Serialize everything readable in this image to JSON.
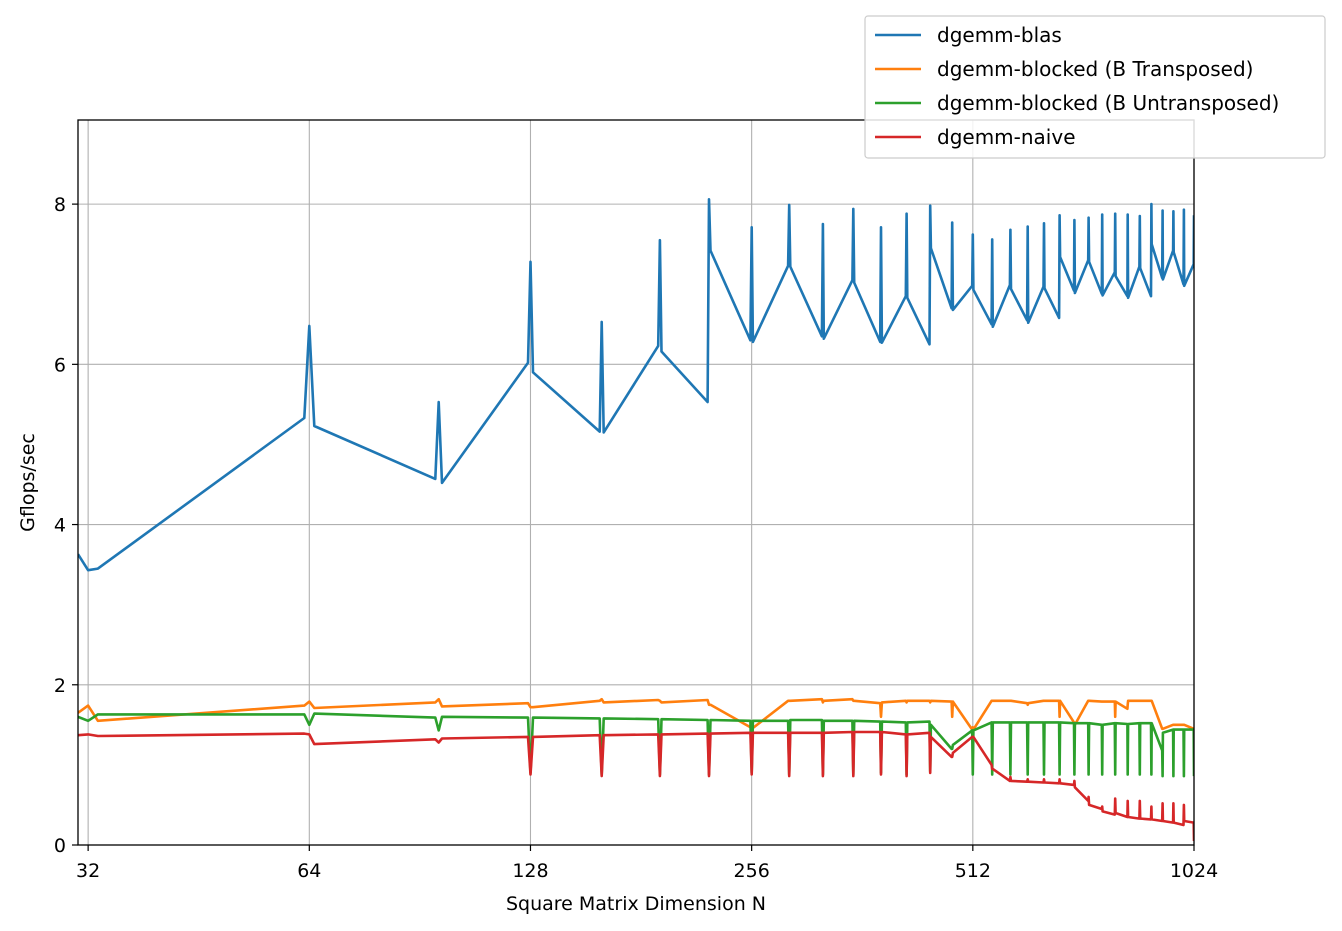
{
  "chart_data": {
    "type": "line",
    "title": "",
    "xlabel": "Square Matrix Dimension N",
    "ylabel": "Gflops/sec",
    "x_scale": "log2",
    "xlim": [
      31,
      1024
    ],
    "ylim": [
      0,
      9.05
    ],
    "xticks": [
      32,
      64,
      128,
      256,
      512,
      1024
    ],
    "yticks": [
      0,
      2,
      4,
      6,
      8
    ],
    "grid": true,
    "legend": "top-right",
    "series": [
      {
        "name": "dgemm-blas",
        "color": "#1f77b4",
        "x": [
          31,
          32,
          33,
          63,
          64,
          65,
          95,
          96,
          97,
          127,
          128,
          129,
          159,
          160,
          161,
          191,
          192,
          193,
          223,
          224,
          225,
          255,
          256,
          257,
          287,
          288,
          289,
          319,
          320,
          321,
          351,
          352,
          353,
          383,
          384,
          385,
          415,
          416,
          417,
          447,
          448,
          449,
          479,
          480,
          481,
          511,
          512,
          513,
          543,
          544,
          545,
          575,
          576,
          577,
          607,
          608,
          609,
          639,
          640,
          641,
          671,
          672,
          673,
          703,
          704,
          705,
          735,
          736,
          737,
          767,
          768,
          769,
          799,
          800,
          801,
          831,
          832,
          833,
          863,
          864,
          865,
          895,
          896,
          897,
          927,
          928,
          929,
          959,
          960,
          961,
          991,
          992,
          993,
          1023,
          1024
        ],
        "y": [
          3.63,
          3.43,
          3.45,
          5.33,
          6.48,
          5.23,
          4.57,
          5.53,
          4.52,
          6.02,
          7.28,
          5.9,
          5.16,
          6.53,
          5.15,
          6.23,
          7.55,
          6.16,
          5.53,
          8.06,
          7.42,
          6.3,
          7.71,
          6.28,
          7.23,
          7.99,
          7.22,
          6.35,
          7.75,
          6.32,
          7.05,
          7.94,
          7.02,
          6.28,
          7.71,
          6.27,
          6.85,
          7.88,
          6.83,
          6.25,
          7.98,
          7.45,
          6.7,
          7.77,
          6.68,
          6.98,
          7.62,
          6.93,
          6.5,
          7.56,
          6.47,
          6.99,
          7.68,
          6.94,
          6.55,
          7.72,
          6.52,
          6.97,
          7.76,
          6.95,
          6.58,
          7.86,
          7.34,
          6.92,
          7.8,
          6.89,
          7.3,
          7.83,
          7.28,
          6.88,
          7.87,
          6.86,
          7.15,
          7.88,
          7.1,
          6.85,
          7.87,
          6.83,
          7.22,
          7.85,
          7.2,
          6.85,
          8.0,
          7.5,
          7.08,
          7.92,
          7.06,
          7.42,
          7.91,
          7.4,
          7.0,
          7.93,
          6.98,
          7.25,
          7.86
        ]
      },
      {
        "name": "dgemm-blocked (B Transposed)",
        "color": "#ff7f0e",
        "x": [
          31,
          32,
          33,
          63,
          64,
          65,
          95,
          96,
          97,
          127,
          128,
          129,
          159,
          160,
          161,
          191,
          192,
          193,
          223,
          224,
          225,
          255,
          256,
          257,
          287,
          288,
          289,
          319,
          320,
          321,
          351,
          352,
          353,
          383,
          384,
          385,
          415,
          416,
          417,
          447,
          448,
          449,
          479,
          480,
          481,
          511,
          512,
          513,
          543,
          544,
          545,
          575,
          576,
          577,
          607,
          608,
          609,
          639,
          640,
          641,
          671,
          672,
          673,
          703,
          704,
          705,
          735,
          736,
          737,
          767,
          768,
          769,
          799,
          800,
          801,
          831,
          832,
          833,
          863,
          864,
          865,
          895,
          896,
          897,
          927,
          928,
          929,
          959,
          960,
          961,
          991,
          992,
          993,
          1023,
          1024
        ],
        "y": [
          1.65,
          1.74,
          1.55,
          1.74,
          1.79,
          1.71,
          1.78,
          1.82,
          1.73,
          1.77,
          1.72,
          1.72,
          1.8,
          1.82,
          1.78,
          1.81,
          1.8,
          1.78,
          1.81,
          1.75,
          1.75,
          1.47,
          1.48,
          1.46,
          1.8,
          1.8,
          1.8,
          1.82,
          1.78,
          1.8,
          1.82,
          1.8,
          1.8,
          1.77,
          1.6,
          1.78,
          1.8,
          1.78,
          1.8,
          1.8,
          1.78,
          1.8,
          1.79,
          1.6,
          1.79,
          1.44,
          1.47,
          1.44,
          1.8,
          1.8,
          1.8,
          1.8,
          1.8,
          1.8,
          1.77,
          1.75,
          1.77,
          1.8,
          1.8,
          1.8,
          1.8,
          1.6,
          1.8,
          1.53,
          1.5,
          1.5,
          1.8,
          1.8,
          1.8,
          1.79,
          1.79,
          1.79,
          1.79,
          1.6,
          1.79,
          1.7,
          1.75,
          1.8,
          1.8,
          1.8,
          1.8,
          1.8,
          1.8,
          1.8,
          1.45,
          1.45,
          1.45,
          1.5,
          1.5,
          1.5,
          1.5,
          1.5,
          1.5,
          1.45,
          1.45
        ]
      },
      {
        "name": "dgemm-blocked (B Untransposed)",
        "color": "#2ca02c",
        "x": [
          31,
          32,
          33,
          63,
          64,
          65,
          95,
          96,
          97,
          127,
          128,
          129,
          159,
          160,
          161,
          191,
          192,
          193,
          223,
          224,
          225,
          255,
          256,
          257,
          287,
          288,
          289,
          319,
          320,
          321,
          351,
          352,
          353,
          383,
          384,
          385,
          415,
          416,
          417,
          447,
          448,
          449,
          479,
          480,
          481,
          511,
          512,
          513,
          543,
          544,
          545,
          575,
          576,
          577,
          607,
          608,
          609,
          639,
          640,
          641,
          671,
          672,
          673,
          703,
          704,
          705,
          735,
          736,
          737,
          767,
          768,
          769,
          799,
          800,
          801,
          831,
          832,
          833,
          863,
          864,
          865,
          895,
          896,
          897,
          927,
          928,
          929,
          959,
          960,
          961,
          991,
          992,
          993,
          1023,
          1024
        ],
        "y": [
          1.6,
          1.55,
          1.63,
          1.63,
          1.5,
          1.64,
          1.59,
          1.43,
          1.6,
          1.59,
          0.9,
          1.59,
          1.58,
          0.88,
          1.58,
          1.57,
          0.88,
          1.57,
          1.56,
          0.88,
          1.56,
          1.55,
          0.9,
          1.55,
          1.55,
          0.88,
          1.56,
          1.56,
          0.88,
          1.55,
          1.55,
          0.88,
          1.55,
          1.54,
          0.9,
          1.54,
          1.53,
          0.88,
          1.53,
          1.54,
          0.92,
          1.5,
          1.2,
          1.2,
          1.25,
          1.43,
          0.88,
          1.43,
          1.53,
          0.88,
          1.53,
          1.53,
          0.88,
          1.53,
          1.53,
          0.88,
          1.53,
          1.53,
          0.88,
          1.53,
          1.53,
          0.88,
          1.53,
          1.52,
          0.88,
          1.52,
          1.52,
          0.88,
          1.52,
          1.5,
          0.88,
          1.5,
          1.52,
          0.88,
          1.52,
          1.51,
          0.88,
          1.51,
          1.52,
          0.88,
          1.52,
          1.52,
          0.88,
          1.52,
          1.18,
          0.86,
          1.4,
          1.44,
          0.86,
          1.44,
          1.44,
          0.86,
          1.44,
          1.44,
          0.86
        ]
      },
      {
        "name": "dgemm-naive",
        "color": "#d62728",
        "x": [
          31,
          32,
          33,
          63,
          64,
          65,
          95,
          96,
          97,
          127,
          128,
          129,
          159,
          160,
          161,
          191,
          192,
          193,
          223,
          224,
          225,
          255,
          256,
          257,
          287,
          288,
          289,
          319,
          320,
          321,
          351,
          352,
          353,
          383,
          384,
          385,
          415,
          416,
          417,
          447,
          448,
          449,
          479,
          480,
          481,
          511,
          512,
          513,
          543,
          544,
          545,
          575,
          576,
          577,
          607,
          608,
          609,
          639,
          640,
          641,
          671,
          672,
          673,
          703,
          704,
          705,
          735,
          736,
          737,
          767,
          768,
          769,
          799,
          800,
          801,
          831,
          832,
          833,
          863,
          864,
          865,
          895,
          896,
          897,
          927,
          928,
          929,
          959,
          960,
          961,
          991,
          992,
          993,
          1023,
          1024
        ],
        "y": [
          1.37,
          1.38,
          1.36,
          1.39,
          1.38,
          1.26,
          1.32,
          1.28,
          1.33,
          1.35,
          0.88,
          1.35,
          1.37,
          0.86,
          1.37,
          1.38,
          0.86,
          1.38,
          1.39,
          0.86,
          1.39,
          1.4,
          0.88,
          1.4,
          1.4,
          0.86,
          1.4,
          1.4,
          0.86,
          1.4,
          1.41,
          0.86,
          1.41,
          1.41,
          0.88,
          1.41,
          1.38,
          0.86,
          1.38,
          1.4,
          0.9,
          1.35,
          1.1,
          1.1,
          1.15,
          1.35,
          1.35,
          1.35,
          1.0,
          0.95,
          0.95,
          0.8,
          0.85,
          0.8,
          0.79,
          0.82,
          0.79,
          0.78,
          0.82,
          0.78,
          0.77,
          0.82,
          0.77,
          0.75,
          0.8,
          0.72,
          0.55,
          0.6,
          0.5,
          0.45,
          0.48,
          0.42,
          0.38,
          0.58,
          0.4,
          0.35,
          0.55,
          0.35,
          0.33,
          0.55,
          0.33,
          0.32,
          0.48,
          0.32,
          0.3,
          0.52,
          0.3,
          0.28,
          0.52,
          0.28,
          0.25,
          0.5,
          0.3,
          0.28,
          0.05
        ]
      }
    ]
  }
}
